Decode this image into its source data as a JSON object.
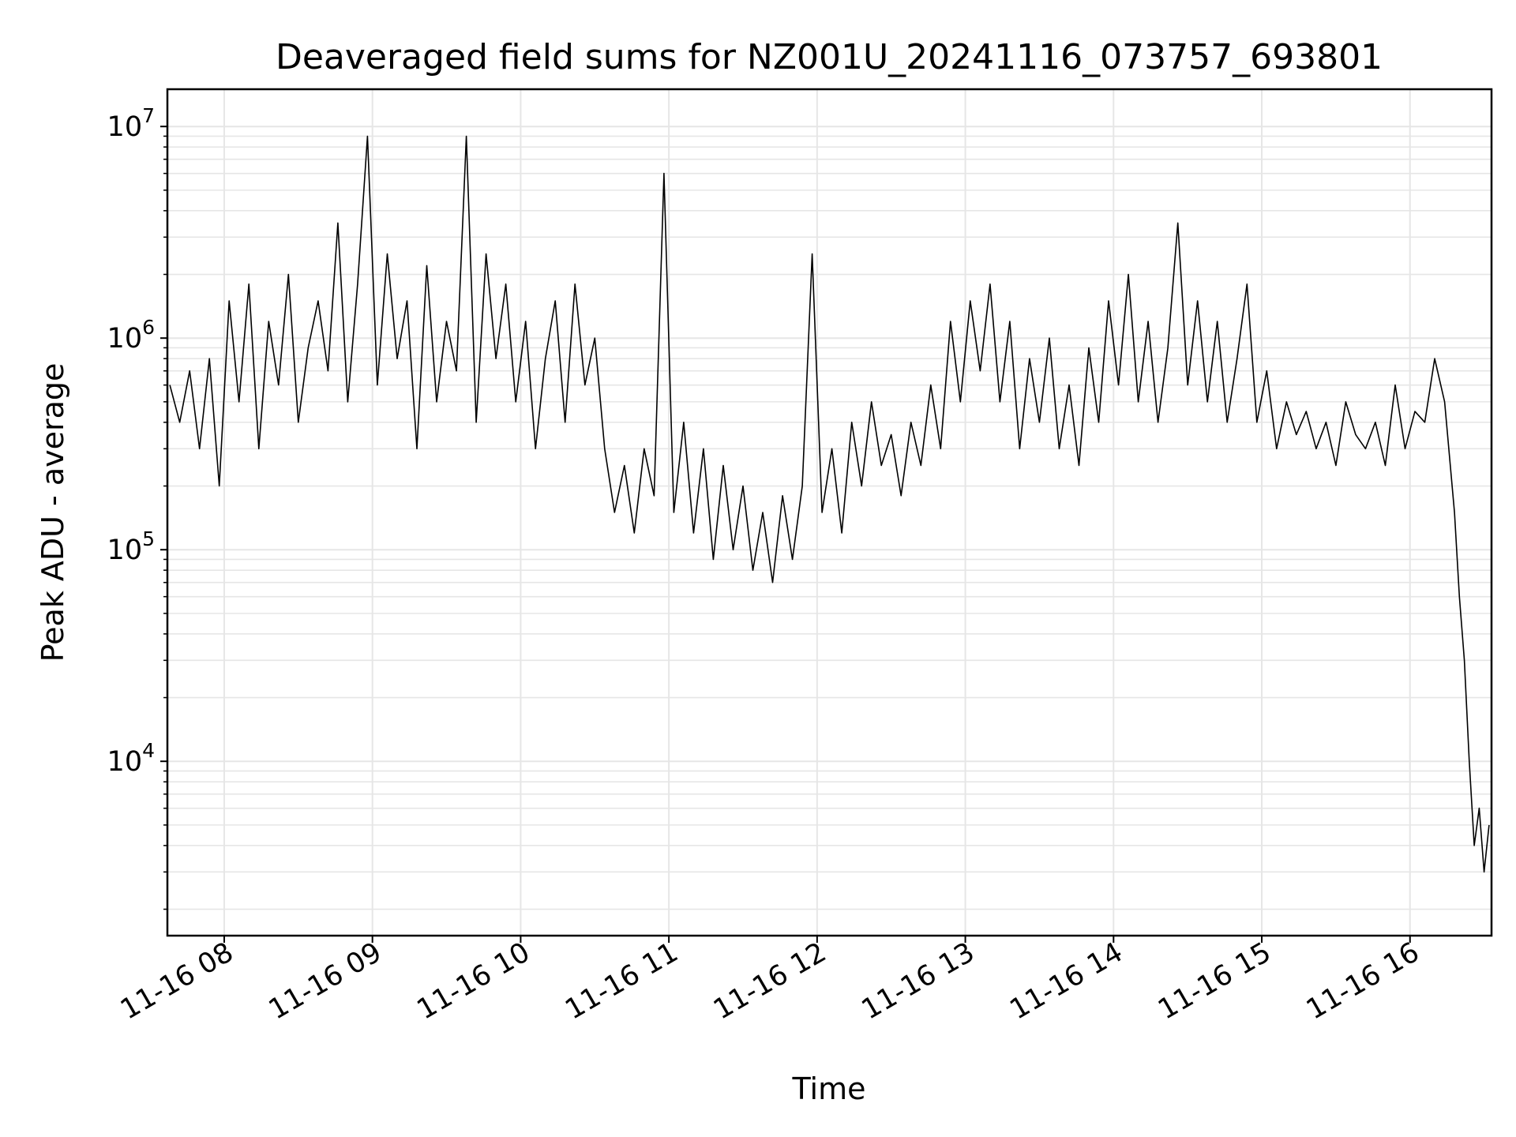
{
  "chart_data": {
    "type": "line",
    "title": "Deaveraged field sums for NZ001U_20241116_073757_693801",
    "xlabel": "Time",
    "ylabel": "Peak ADU - average",
    "yscale": "log",
    "xlim": [
      "2024-11-16 07:37",
      "2024-11-16 16:33"
    ],
    "ylim": [
      1500,
      15000000
    ],
    "grid": true,
    "legend": "none",
    "line_color": "#000000",
    "grid_color": "#e6e6e6",
    "x_ticks": [
      {
        "value": "2024-11-16 08:00",
        "label": "11-16 08"
      },
      {
        "value": "2024-11-16 09:00",
        "label": "11-16 09"
      },
      {
        "value": "2024-11-16 10:00",
        "label": "11-16 10"
      },
      {
        "value": "2024-11-16 11:00",
        "label": "11-16 11"
      },
      {
        "value": "2024-11-16 12:00",
        "label": "11-16 12"
      },
      {
        "value": "2024-11-16 13:00",
        "label": "11-16 13"
      },
      {
        "value": "2024-11-16 14:00",
        "label": "11-16 14"
      },
      {
        "value": "2024-11-16 15:00",
        "label": "11-16 15"
      },
      {
        "value": "2024-11-16 16:00",
        "label": "11-16 16"
      }
    ],
    "y_ticks": [
      {
        "value": 10000,
        "base": "10",
        "exp": "4"
      },
      {
        "value": 100000,
        "base": "10",
        "exp": "5"
      },
      {
        "value": 1000000,
        "base": "10",
        "exp": "6"
      },
      {
        "value": 10000000,
        "base": "10",
        "exp": "7"
      }
    ],
    "series": [
      {
        "x": [
          "2024-11-16 07:38",
          "2024-11-16 07:42",
          "2024-11-16 07:46",
          "2024-11-16 07:50",
          "2024-11-16 07:54",
          "2024-11-16 07:58",
          "2024-11-16 08:02",
          "2024-11-16 08:06",
          "2024-11-16 08:10",
          "2024-11-16 08:14",
          "2024-11-16 08:18",
          "2024-11-16 08:22",
          "2024-11-16 08:26",
          "2024-11-16 08:30",
          "2024-11-16 08:34",
          "2024-11-16 08:38",
          "2024-11-16 08:42",
          "2024-11-16 08:46",
          "2024-11-16 08:50",
          "2024-11-16 08:54",
          "2024-11-16 08:58",
          "2024-11-16 09:02",
          "2024-11-16 09:06",
          "2024-11-16 09:10",
          "2024-11-16 09:14",
          "2024-11-16 09:18",
          "2024-11-16 09:22",
          "2024-11-16 09:26",
          "2024-11-16 09:30",
          "2024-11-16 09:34",
          "2024-11-16 09:38",
          "2024-11-16 09:42",
          "2024-11-16 09:46",
          "2024-11-16 09:50",
          "2024-11-16 09:54",
          "2024-11-16 09:58",
          "2024-11-16 10:02",
          "2024-11-16 10:06",
          "2024-11-16 10:10",
          "2024-11-16 10:14",
          "2024-11-16 10:18",
          "2024-11-16 10:22",
          "2024-11-16 10:26",
          "2024-11-16 10:30",
          "2024-11-16 10:34",
          "2024-11-16 10:38",
          "2024-11-16 10:42",
          "2024-11-16 10:46",
          "2024-11-16 10:50",
          "2024-11-16 10:54",
          "2024-11-16 10:58",
          "2024-11-16 11:02",
          "2024-11-16 11:06",
          "2024-11-16 11:10",
          "2024-11-16 11:14",
          "2024-11-16 11:18",
          "2024-11-16 11:22",
          "2024-11-16 11:26",
          "2024-11-16 11:30",
          "2024-11-16 11:34",
          "2024-11-16 11:38",
          "2024-11-16 11:42",
          "2024-11-16 11:46",
          "2024-11-16 11:50",
          "2024-11-16 11:54",
          "2024-11-16 11:58",
          "2024-11-16 12:02",
          "2024-11-16 12:06",
          "2024-11-16 12:10",
          "2024-11-16 12:14",
          "2024-11-16 12:18",
          "2024-11-16 12:22",
          "2024-11-16 12:26",
          "2024-11-16 12:30",
          "2024-11-16 12:34",
          "2024-11-16 12:38",
          "2024-11-16 12:42",
          "2024-11-16 12:46",
          "2024-11-16 12:50",
          "2024-11-16 12:54",
          "2024-11-16 12:58",
          "2024-11-16 13:02",
          "2024-11-16 13:06",
          "2024-11-16 13:10",
          "2024-11-16 13:14",
          "2024-11-16 13:18",
          "2024-11-16 13:22",
          "2024-11-16 13:26",
          "2024-11-16 13:30",
          "2024-11-16 13:34",
          "2024-11-16 13:38",
          "2024-11-16 13:42",
          "2024-11-16 13:46",
          "2024-11-16 13:50",
          "2024-11-16 13:54",
          "2024-11-16 13:58",
          "2024-11-16 14:02",
          "2024-11-16 14:06",
          "2024-11-16 14:10",
          "2024-11-16 14:14",
          "2024-11-16 14:18",
          "2024-11-16 14:22",
          "2024-11-16 14:26",
          "2024-11-16 14:30",
          "2024-11-16 14:34",
          "2024-11-16 14:38",
          "2024-11-16 14:42",
          "2024-11-16 14:46",
          "2024-11-16 14:50",
          "2024-11-16 14:54",
          "2024-11-16 14:58",
          "2024-11-16 15:02",
          "2024-11-16 15:06",
          "2024-11-16 15:10",
          "2024-11-16 15:14",
          "2024-11-16 15:18",
          "2024-11-16 15:22",
          "2024-11-16 15:26",
          "2024-11-16 15:30",
          "2024-11-16 15:34",
          "2024-11-16 15:38",
          "2024-11-16 15:42",
          "2024-11-16 15:46",
          "2024-11-16 15:50",
          "2024-11-16 15:54",
          "2024-11-16 15:58",
          "2024-11-16 16:02",
          "2024-11-16 16:06",
          "2024-11-16 16:10",
          "2024-11-16 16:14",
          "2024-11-16 16:18",
          "2024-11-16 16:20",
          "2024-11-16 16:22",
          "2024-11-16 16:24",
          "2024-11-16 16:26",
          "2024-11-16 16:28",
          "2024-11-16 16:30",
          "2024-11-16 16:32"
        ],
        "values": [
          600000,
          400000,
          700000,
          300000,
          800000,
          200000,
          1500000,
          500000,
          1800000,
          300000,
          1200000,
          600000,
          2000000,
          400000,
          900000,
          1500000,
          700000,
          3500000,
          500000,
          1800000,
          9000000,
          600000,
          2500000,
          800000,
          1500000,
          300000,
          2200000,
          500000,
          1200000,
          700000,
          9000000,
          400000,
          2500000,
          800000,
          1800000,
          500000,
          1200000,
          300000,
          800000,
          1500000,
          400000,
          1800000,
          600000,
          1000000,
          300000,
          150000,
          250000,
          120000,
          300000,
          180000,
          6000000,
          150000,
          400000,
          120000,
          300000,
          90000,
          250000,
          100000,
          200000,
          80000,
          150000,
          70000,
          180000,
          90000,
          200000,
          2500000,
          150000,
          300000,
          120000,
          400000,
          200000,
          500000,
          250000,
          350000,
          180000,
          400000,
          250000,
          600000,
          300000,
          1200000,
          500000,
          1500000,
          700000,
          1800000,
          500000,
          1200000,
          300000,
          800000,
          400000,
          1000000,
          300000,
          600000,
          250000,
          900000,
          400000,
          1500000,
          600000,
          2000000,
          500000,
          1200000,
          400000,
          900000,
          3500000,
          600000,
          1500000,
          500000,
          1200000,
          400000,
          800000,
          1800000,
          400000,
          700000,
          300000,
          500000,
          350000,
          450000,
          300000,
          400000,
          250000,
          500000,
          350000,
          300000,
          400000,
          250000,
          600000,
          300000,
          450000,
          400000,
          800000,
          500000,
          150000,
          60000,
          30000,
          10000,
          4000,
          6000,
          3000,
          5000
        ]
      }
    ]
  }
}
